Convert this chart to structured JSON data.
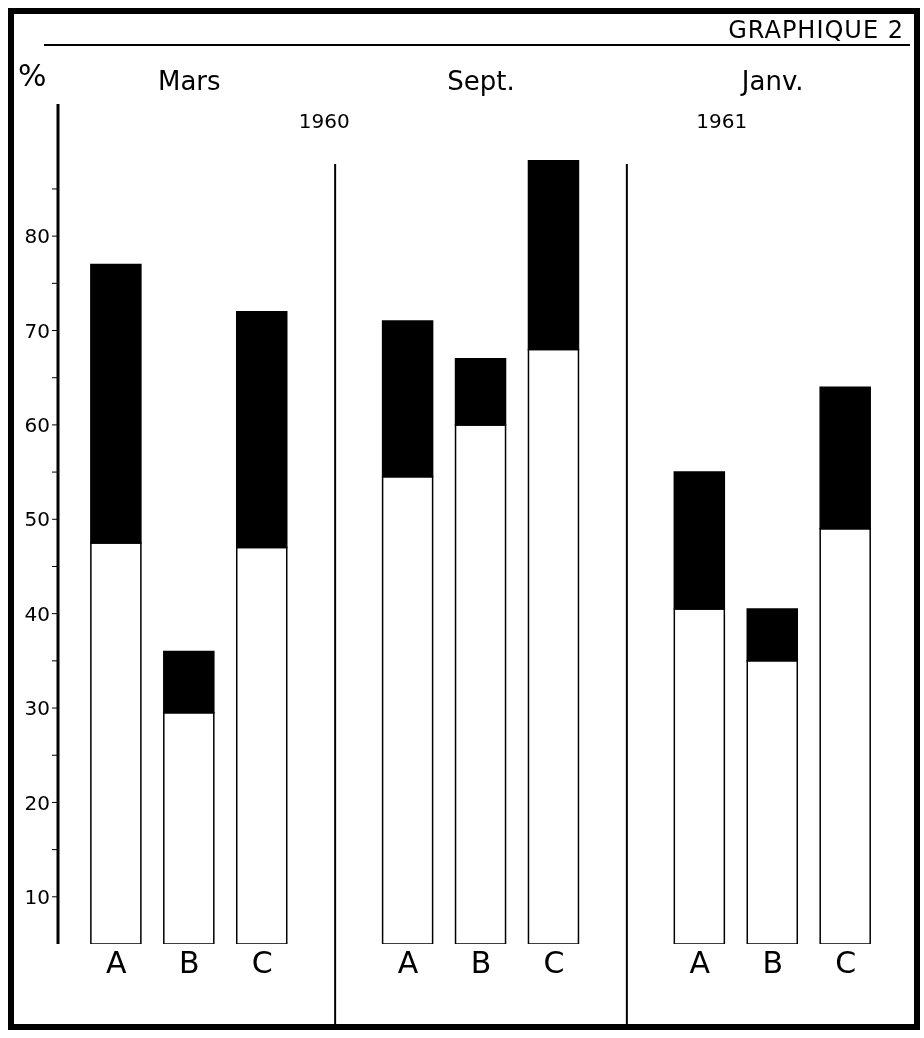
{
  "chart_data": {
    "type": "bar",
    "title": "GRAPHIQUE 2",
    "ylabel": "%",
    "categories": [
      "A",
      "B",
      "C",
      "A",
      "B",
      "C",
      "A",
      "B",
      "C"
    ],
    "series": [
      {
        "color": "#ffffff",
        "values": [
          47.5,
          29.5,
          47,
          54.5,
          60,
          68,
          40.5,
          35,
          49
        ]
      },
      {
        "color": "#000000",
        "values": [
          29.5,
          6.5,
          25,
          16.5,
          7,
          20,
          14.5,
          5.5,
          15
        ]
      }
    ],
    "ylim": [
      5,
      94
    ],
    "yticks": [
      10,
      {
        "value": 15,
        "label": null
      },
      20,
      {
        "value": 25,
        "label": null
      },
      30,
      {
        "value": 35,
        "label": null
      },
      40,
      {
        "value": 45,
        "label": null
      },
      50,
      {
        "value": 55,
        "label": null
      },
      60,
      {
        "value": 65,
        "label": null
      },
      70,
      {
        "value": 75,
        "label": null
      },
      80,
      {
        "value": 85,
        "label": null
      }
    ],
    "annotations": [
      "Mars",
      "Sept.",
      "Janv.",
      "1960",
      "1961"
    ],
    "stacked": true
  }
}
